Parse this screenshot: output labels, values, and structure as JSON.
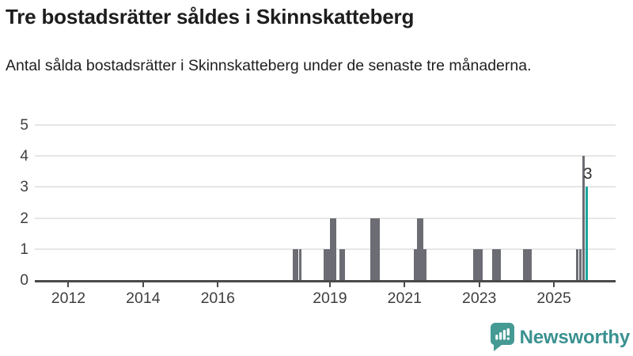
{
  "header": {
    "title": "Tre bostadsrätter såldes i Skinnskatteberg",
    "subtitle": "Antal sålda bostadsrätter i Skinnskatteberg under de senaste tre månaderna."
  },
  "chart_data": {
    "type": "bar",
    "title": "Tre bostadsrätter såldes i Skinnskatteberg",
    "subtitle": "Antal sålda bostadsrätter i Skinnskatteberg under de senaste tre månaderna.",
    "unit": "months",
    "ylim": [
      0,
      5
    ],
    "y_ticks": [
      0,
      1,
      2,
      3,
      4,
      5
    ],
    "x_tick_years": [
      2012,
      2014,
      2016,
      2019,
      2021,
      2023,
      2025
    ],
    "xlim_years": [
      2011.1,
      2026.65
    ],
    "grid": true,
    "legend": "none",
    "bar_color": "#6c6c74",
    "highlight_color": "#1ba5a0",
    "annotation": {
      "text": "3",
      "month": "2025-11"
    },
    "points": [
      {
        "month": "2018-01",
        "value": 1
      },
      {
        "month": "2018-02",
        "value": 1
      },
      {
        "month": "2018-03",
        "value": 1
      },
      {
        "month": "2018-11",
        "value": 1
      },
      {
        "month": "2018-12",
        "value": 1
      },
      {
        "month": "2019-01",
        "value": 2
      },
      {
        "month": "2019-02",
        "value": 2
      },
      {
        "month": "2019-04",
        "value": 1
      },
      {
        "month": "2019-05",
        "value": 1
      },
      {
        "month": "2020-02",
        "value": 2
      },
      {
        "month": "2020-03",
        "value": 2
      },
      {
        "month": "2020-04",
        "value": 2
      },
      {
        "month": "2021-04",
        "value": 1
      },
      {
        "month": "2021-05",
        "value": 2
      },
      {
        "month": "2021-06",
        "value": 2
      },
      {
        "month": "2021-07",
        "value": 1
      },
      {
        "month": "2022-11",
        "value": 1
      },
      {
        "month": "2022-12",
        "value": 1
      },
      {
        "month": "2023-01",
        "value": 1
      },
      {
        "month": "2023-05",
        "value": 1
      },
      {
        "month": "2023-06",
        "value": 1
      },
      {
        "month": "2023-07",
        "value": 1
      },
      {
        "month": "2024-03",
        "value": 1
      },
      {
        "month": "2024-04",
        "value": 1
      },
      {
        "month": "2024-05",
        "value": 1
      },
      {
        "month": "2025-08",
        "value": 1
      },
      {
        "month": "2025-09",
        "value": 1
      },
      {
        "month": "2025-10",
        "value": 4
      },
      {
        "month": "2025-11",
        "value": 3,
        "highlight": true,
        "label": "3"
      }
    ]
  },
  "footer": {
    "brand": "Newsworthy",
    "brand_color": "#3a9190",
    "logo_icon": "bar-chart-speech-bubble",
    "logo_color": "#459a94"
  }
}
